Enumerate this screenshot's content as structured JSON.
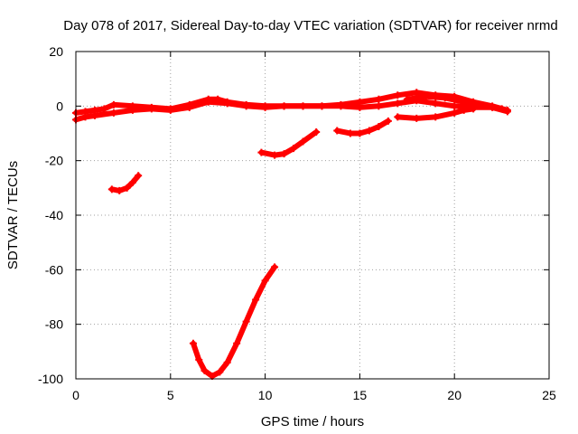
{
  "chart_data": {
    "type": "scatter",
    "title": "Day 078 of 2017, Sidereal Day-to-day VTEC variation (SDTVAR) for receiver nrmd",
    "xlabel": "GPS time / hours",
    "ylabel": "SDTVAR / TECUs",
    "xlim": [
      0,
      25
    ],
    "ylim": [
      -100,
      20
    ],
    "xticks": [
      0,
      5,
      10,
      15,
      20,
      25
    ],
    "yticks": [
      -100,
      -80,
      -60,
      -40,
      -20,
      0,
      20
    ],
    "grid": true,
    "legend": "none",
    "marker_color": "#ff0000",
    "series": [
      {
        "name": "main-band-upper",
        "x": [
          0.0,
          0.5,
          1.0,
          1.5,
          2.0,
          3.0,
          4.0,
          5.0,
          6.0,
          7.0,
          7.5,
          8.0,
          9.0,
          10.0,
          11.0,
          12.0,
          13.0,
          14.0,
          15.0,
          16.0,
          17.0,
          18.0,
          19.0,
          20.0,
          21.0,
          22.0,
          22.8
        ],
        "y": [
          -2.5,
          -2.0,
          -1.5,
          -1.0,
          0.5,
          0.0,
          -0.5,
          -1.0,
          0.5,
          2.5,
          2.5,
          1.5,
          0.5,
          0.0,
          0.0,
          0.0,
          0.0,
          0.5,
          1.5,
          2.5,
          4.0,
          5.0,
          4.0,
          3.5,
          1.5,
          0.0,
          -1.5
        ]
      },
      {
        "name": "main-band-lower",
        "x": [
          0.0,
          0.5,
          1.0,
          2.0,
          3.0,
          4.0,
          5.0,
          6.0,
          7.0,
          8.0,
          9.0,
          10.0,
          11.0,
          12.0,
          13.0,
          14.0,
          15.0,
          16.0,
          17.0,
          18.0,
          19.0,
          20.0,
          21.0,
          22.0,
          22.8
        ],
        "y": [
          -5.0,
          -4.0,
          -3.5,
          -2.5,
          -1.5,
          -1.0,
          -1.5,
          -0.5,
          1.5,
          1.0,
          0.0,
          -0.5,
          0.0,
          0.0,
          0.0,
          0.0,
          -0.5,
          0.0,
          1.0,
          2.0,
          1.0,
          0.0,
          -0.5,
          -0.5,
          -2.0
        ]
      },
      {
        "name": "arc-18-23",
        "x": [
          17.5,
          18.5,
          19.5,
          20.5,
          21.5,
          22.5
        ],
        "y": [
          2.5,
          3.5,
          3.0,
          1.5,
          0.0,
          -1.0
        ]
      },
      {
        "name": "arc-17-21",
        "x": [
          17.0,
          18.0,
          19.0,
          20.0,
          20.5,
          21.0
        ],
        "y": [
          -4.0,
          -4.5,
          -4.0,
          -2.5,
          -1.5,
          -1.0
        ]
      },
      {
        "name": "arc-14-16",
        "x": [
          13.8,
          14.5,
          15.0,
          15.5,
          16.0,
          16.5
        ],
        "y": [
          -9.0,
          -10.0,
          -10.0,
          -9.0,
          -7.5,
          -5.5
        ]
      },
      {
        "name": "arc-10-13",
        "x": [
          9.8,
          10.5,
          11.0,
          11.5,
          12.0,
          12.7
        ],
        "y": [
          -17.0,
          -18.0,
          -17.5,
          -15.5,
          -13.0,
          -9.5
        ]
      },
      {
        "name": "arc-2-3",
        "x": [
          1.9,
          2.3,
          2.7,
          3.0,
          3.3
        ],
        "y": [
          -30.5,
          -31.0,
          -30.0,
          -28.0,
          -25.5
        ]
      },
      {
        "name": "arc-6-11",
        "x": [
          6.2,
          6.5,
          6.8,
          7.2,
          7.6,
          8.0,
          8.5,
          9.0,
          9.5,
          10.0,
          10.5
        ],
        "y": [
          -87.0,
          -93.0,
          -97.0,
          -99.0,
          -97.5,
          -94.0,
          -87.0,
          -79.0,
          -71.0,
          -64.0,
          -59.0
        ]
      }
    ]
  }
}
